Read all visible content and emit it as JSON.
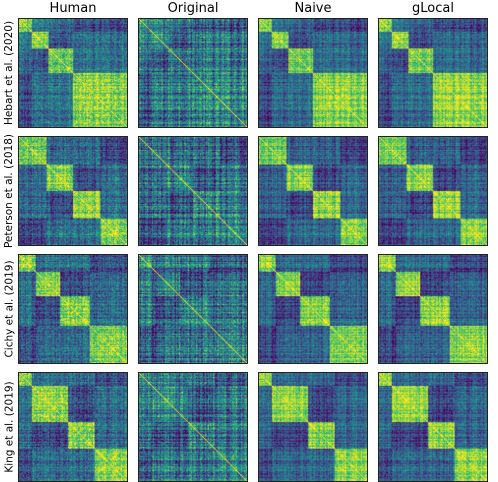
{
  "chart_data": {
    "type": "heatmap",
    "columns": [
      "Human",
      "Original",
      "Naive",
      "gLocal"
    ],
    "rows": [
      "Hebart et al. (2020)",
      "Peterson et al. (2018)",
      "Cichy et al. (2019)",
      "King et al. (2019)"
    ],
    "colormap": "viridis",
    "grid": false,
    "value_range": [
      0,
      1
    ],
    "block_structure": [
      {
        "dataset": "Hebart et al. (2020)",
        "block_fractions": [
          0.12,
          0.15,
          0.23,
          0.5
        ]
      },
      {
        "dataset": "Peterson et al. (2018)",
        "block_fractions": [
          0.25,
          0.25,
          0.25,
          0.25
        ]
      },
      {
        "dataset": "Cichy et al. (2019)",
        "block_fractions": [
          0.15,
          0.23,
          0.27,
          0.35
        ]
      },
      {
        "dataset": "King et al. (2019)",
        "block_fractions": [
          0.12,
          0.33,
          0.25,
          0.3
        ]
      }
    ],
    "column_style": {
      "Human": {
        "within_block": 0.8,
        "between_block": 0.35,
        "noise": 0.18
      },
      "Original": {
        "within_block": 0.45,
        "between_block": 0.38,
        "noise": 0.2
      },
      "Naive": {
        "within_block": 0.8,
        "between_block": 0.32,
        "noise": 0.14
      },
      "gLocal": {
        "within_block": 0.82,
        "between_block": 0.32,
        "noise": 0.14
      }
    }
  },
  "colors": {
    "viridis": [
      "#440154",
      "#482878",
      "#3e4989",
      "#31688e",
      "#26828e",
      "#1f9e89",
      "#35b779",
      "#6ece58",
      "#b5de2b",
      "#fde725"
    ]
  }
}
